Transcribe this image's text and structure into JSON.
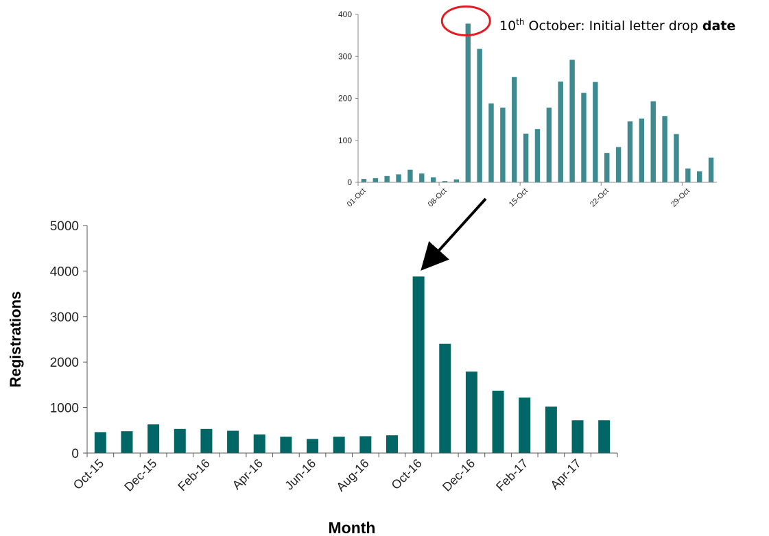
{
  "chart_data": [
    {
      "type": "bar",
      "xlabel": "Month",
      "ylabel": "Registrations",
      "ylim": [
        0,
        5000
      ],
      "yticks": [
        "0",
        "1000",
        "2000",
        "3000",
        "4000",
        "5000"
      ],
      "categories": [
        "Oct-15",
        "Nov-15",
        "Dec-15",
        "Jan-16",
        "Feb-16",
        "Mar-16",
        "Apr-16",
        "May-16",
        "Jun-16",
        "Jul-16",
        "Aug-16",
        "Sep-16",
        "Oct-16",
        "Nov-16",
        "Dec-16",
        "Jan-17",
        "Feb-17",
        "Mar-17",
        "Apr-17",
        "May-17"
      ],
      "tick_labels": [
        "Oct-15",
        "",
        "Dec-15",
        "",
        "Feb-16",
        "",
        "Apr-16",
        "",
        "Jun-16",
        "",
        "Aug-16",
        "",
        "Oct-16",
        "",
        "Dec-16",
        "",
        "Feb-17",
        "",
        "Apr-17",
        ""
      ],
      "values": [
        460,
        480,
        630,
        530,
        530,
        490,
        410,
        360,
        310,
        360,
        370,
        390,
        3880,
        2400,
        1790,
        1370,
        1220,
        1020,
        720,
        720
      ],
      "color": "#006666",
      "grid": false
    },
    {
      "type": "bar",
      "ylim": [
        0,
        400
      ],
      "yticks": [
        "0",
        "100",
        "200",
        "300",
        "400"
      ],
      "categories": [
        "01-Oct",
        "02-Oct",
        "03-Oct",
        "04-Oct",
        "05-Oct",
        "06-Oct",
        "07-Oct",
        "08-Oct",
        "09-Oct",
        "10-Oct",
        "11-Oct",
        "12-Oct",
        "13-Oct",
        "14-Oct",
        "15-Oct",
        "16-Oct",
        "17-Oct",
        "18-Oct",
        "19-Oct",
        "20-Oct",
        "21-Oct",
        "22-Oct",
        "23-Oct",
        "24-Oct",
        "25-Oct",
        "26-Oct",
        "27-Oct",
        "28-Oct",
        "29-Oct",
        "30-Oct",
        "31-Oct"
      ],
      "tick_labels": [
        "01-Oct",
        "",
        "",
        "",
        "",
        "",
        "",
        "08-Oct",
        "",
        "",
        "",
        "",
        "",
        "",
        "15-Oct",
        "",
        "",
        "",
        "",
        "",
        "",
        "22-Oct",
        "",
        "",
        "",
        "",
        "",
        "",
        "29-Oct",
        "",
        ""
      ],
      "values": [
        8,
        10,
        15,
        19,
        30,
        21,
        12,
        3,
        7,
        378,
        318,
        188,
        178,
        251,
        116,
        127,
        178,
        240,
        292,
        213,
        239,
        70,
        84,
        145,
        152,
        193,
        158,
        115,
        33,
        26,
        59
      ],
      "color": "#3d8b91",
      "grid": false,
      "annotation": {
        "sup_prefix": "10",
        "sup": "th",
        "text": " October: Initial letter drop ",
        "bold": "date",
        "highlight_color": "#e31b23"
      }
    }
  ]
}
